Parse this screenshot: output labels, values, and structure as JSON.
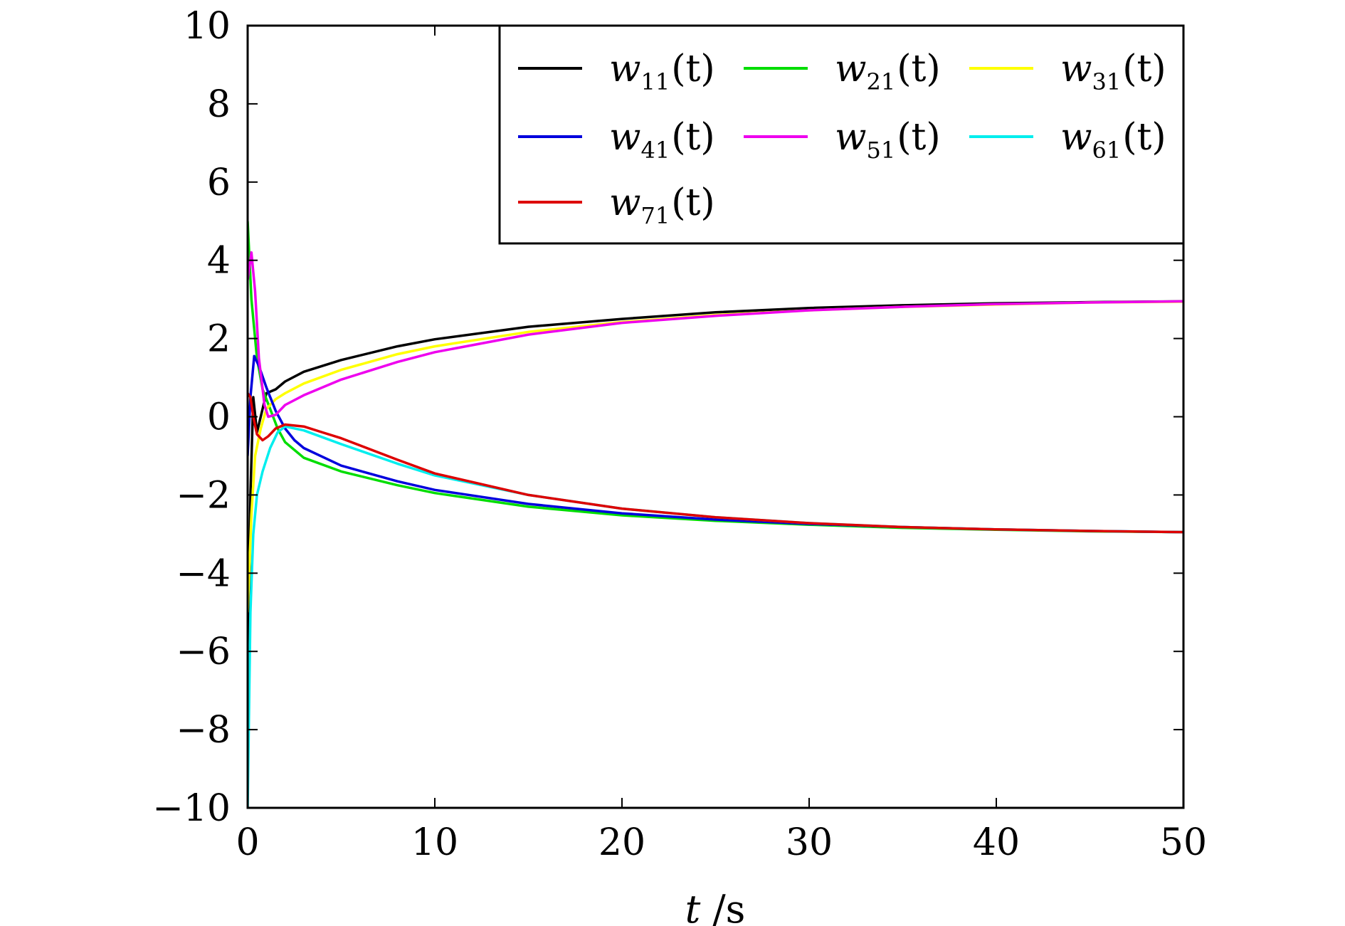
{
  "chart_data": {
    "type": "line",
    "xlabel": "t /s",
    "xlabel_var": "t",
    "xlabel_unit": " /s",
    "ylabel": "",
    "xlim": [
      0,
      50
    ],
    "ylim": [
      -10,
      10
    ],
    "x_ticks": [
      0,
      10,
      20,
      30,
      40,
      50
    ],
    "x_tick_labels": [
      "0",
      "10",
      "20",
      "30",
      "40",
      "50"
    ],
    "y_ticks": [
      -10,
      -8,
      -6,
      -4,
      -2,
      0,
      2,
      4,
      6,
      8,
      10
    ],
    "y_tick_labels": [
      "−10",
      "−8",
      "−6",
      "−4",
      "−2",
      "0",
      "2",
      "4",
      "6",
      "8",
      "10"
    ],
    "grid": false,
    "legend_position": "top-right",
    "series": [
      {
        "name": "w11(t)",
        "name_base": "w",
        "name_sub": "11",
        "name_arg": "(t)",
        "color": "#000000",
        "points": [
          [
            0,
            -8.5
          ],
          [
            0.15,
            -2
          ],
          [
            0.3,
            0.5
          ],
          [
            0.5,
            -0.4
          ],
          [
            0.8,
            0.2
          ],
          [
            1,
            0.6
          ],
          [
            1.5,
            0.7
          ],
          [
            2,
            0.9
          ],
          [
            3,
            1.15
          ],
          [
            5,
            1.45
          ],
          [
            8,
            1.8
          ],
          [
            10,
            1.98
          ],
          [
            15,
            2.3
          ],
          [
            20,
            2.5
          ],
          [
            25,
            2.67
          ],
          [
            30,
            2.78
          ],
          [
            35,
            2.85
          ],
          [
            40,
            2.9
          ],
          [
            45,
            2.93
          ],
          [
            50,
            2.95
          ]
        ]
      },
      {
        "name": "w21(t)",
        "name_base": "w",
        "name_sub": "21",
        "name_arg": "(t)",
        "color": "#00dd00",
        "points": [
          [
            0,
            5
          ],
          [
            0.2,
            3
          ],
          [
            0.5,
            1.5
          ],
          [
            0.8,
            0.7
          ],
          [
            1.2,
            0.2
          ],
          [
            1.6,
            -0.3
          ],
          [
            2,
            -0.65
          ],
          [
            3,
            -1.05
          ],
          [
            5,
            -1.4
          ],
          [
            8,
            -1.75
          ],
          [
            10,
            -1.95
          ],
          [
            15,
            -2.3
          ],
          [
            20,
            -2.52
          ],
          [
            25,
            -2.66
          ],
          [
            30,
            -2.76
          ],
          [
            35,
            -2.84
          ],
          [
            40,
            -2.89
          ],
          [
            45,
            -2.93
          ],
          [
            50,
            -2.95
          ]
        ]
      },
      {
        "name": "w31(t)",
        "name_base": "w",
        "name_sub": "31",
        "name_arg": "(t)",
        "color": "#ffff00",
        "points": [
          [
            0,
            -5
          ],
          [
            0.2,
            -2.5
          ],
          [
            0.4,
            -1.0
          ],
          [
            0.7,
            -0.3
          ],
          [
            1,
            0.2
          ],
          [
            1.5,
            0.45
          ],
          [
            2,
            0.6
          ],
          [
            3,
            0.85
          ],
          [
            5,
            1.2
          ],
          [
            8,
            1.6
          ],
          [
            10,
            1.8
          ],
          [
            15,
            2.17
          ],
          [
            20,
            2.42
          ],
          [
            25,
            2.6
          ],
          [
            30,
            2.72
          ],
          [
            35,
            2.81
          ],
          [
            40,
            2.87
          ],
          [
            45,
            2.92
          ],
          [
            50,
            2.94
          ]
        ]
      },
      {
        "name": "w41(t)",
        "name_base": "w",
        "name_sub": "41",
        "name_arg": "(t)",
        "color": "#0000dd",
        "points": [
          [
            0,
            -1
          ],
          [
            0.15,
            0.5
          ],
          [
            0.35,
            1.55
          ],
          [
            0.6,
            1.3
          ],
          [
            1,
            0.75
          ],
          [
            1.5,
            0.15
          ],
          [
            2,
            -0.3
          ],
          [
            2.5,
            -0.6
          ],
          [
            3,
            -0.8
          ],
          [
            5,
            -1.25
          ],
          [
            8,
            -1.65
          ],
          [
            10,
            -1.87
          ],
          [
            15,
            -2.23
          ],
          [
            20,
            -2.47
          ],
          [
            25,
            -2.63
          ],
          [
            30,
            -2.74
          ],
          [
            35,
            -2.82
          ],
          [
            40,
            -2.88
          ],
          [
            45,
            -2.92
          ],
          [
            50,
            -2.95
          ]
        ]
      },
      {
        "name": "w51(t)",
        "name_base": "w",
        "name_sub": "51",
        "name_arg": "(t)",
        "color": "#ee00ee",
        "points": [
          [
            0,
            3.5
          ],
          [
            0.2,
            4.2
          ],
          [
            0.4,
            3.2
          ],
          [
            0.6,
            1.5
          ],
          [
            0.9,
            0.3
          ],
          [
            1.1,
            0
          ],
          [
            1.5,
            0.05
          ],
          [
            2,
            0.3
          ],
          [
            3,
            0.55
          ],
          [
            5,
            0.95
          ],
          [
            8,
            1.4
          ],
          [
            10,
            1.65
          ],
          [
            15,
            2.1
          ],
          [
            20,
            2.4
          ],
          [
            25,
            2.58
          ],
          [
            30,
            2.72
          ],
          [
            35,
            2.81
          ],
          [
            40,
            2.88
          ],
          [
            45,
            2.92
          ],
          [
            50,
            2.95
          ]
        ]
      },
      {
        "name": "w61(t)",
        "name_base": "w",
        "name_sub": "61",
        "name_arg": "(t)",
        "color": "#00eeee",
        "points": [
          [
            0,
            -10
          ],
          [
            0.15,
            -5
          ],
          [
            0.3,
            -3
          ],
          [
            0.5,
            -2
          ],
          [
            0.8,
            -1.4
          ],
          [
            1.2,
            -0.8
          ],
          [
            1.6,
            -0.4
          ],
          [
            2,
            -0.25
          ],
          [
            3,
            -0.35
          ],
          [
            5,
            -0.7
          ],
          [
            8,
            -1.2
          ],
          [
            10,
            -1.5
          ],
          [
            15,
            -2.0
          ],
          [
            20,
            -2.35
          ],
          [
            25,
            -2.57
          ],
          [
            30,
            -2.72
          ],
          [
            35,
            -2.82
          ],
          [
            40,
            -2.88
          ],
          [
            45,
            -2.92
          ],
          [
            50,
            -2.95
          ]
        ]
      },
      {
        "name": "w71(t)",
        "name_base": "w",
        "name_sub": "71",
        "name_arg": "(t)",
        "color": "#dd0000",
        "points": [
          [
            0,
            0.6
          ],
          [
            0.15,
            0.5
          ],
          [
            0.3,
            0
          ],
          [
            0.5,
            -0.45
          ],
          [
            0.8,
            -0.6
          ],
          [
            1.1,
            -0.5
          ],
          [
            1.5,
            -0.3
          ],
          [
            2,
            -0.2
          ],
          [
            3,
            -0.25
          ],
          [
            4,
            -0.4
          ],
          [
            5,
            -0.55
          ],
          [
            8,
            -1.1
          ],
          [
            10,
            -1.45
          ],
          [
            15,
            -2.0
          ],
          [
            20,
            -2.35
          ],
          [
            25,
            -2.57
          ],
          [
            30,
            -2.72
          ],
          [
            35,
            -2.82
          ],
          [
            40,
            -2.88
          ],
          [
            45,
            -2.92
          ],
          [
            50,
            -2.95
          ]
        ]
      }
    ]
  }
}
